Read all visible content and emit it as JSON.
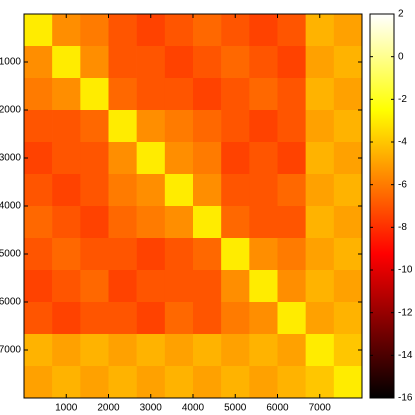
{
  "chart_data": {
    "type": "heatmap",
    "colormap": "hot",
    "xlim": [
      0,
      8000
    ],
    "ylim": [
      0,
      8000
    ],
    "xticks": [
      1000,
      2000,
      3000,
      4000,
      5000,
      6000,
      7000
    ],
    "yticks": [
      1000,
      2000,
      3000,
      4000,
      5000,
      6000,
      7000
    ],
    "clim": [
      -16,
      2
    ],
    "cticks": [
      -16,
      -14,
      -12,
      -10,
      -8,
      -6,
      -4,
      -2,
      0,
      2
    ],
    "z": [
      [
        -3,
        -5.5,
        -6,
        -7,
        -7.5,
        -7,
        -6.5,
        -7,
        -7.5,
        -7,
        -4.5,
        -5
      ],
      [
        -5.5,
        -3,
        -5.5,
        -7,
        -7,
        -7.5,
        -7,
        -6.5,
        -7,
        -7.5,
        -5,
        -4.5
      ],
      [
        -6,
        -5.5,
        -3,
        -6.5,
        -7,
        -7,
        -7.5,
        -7,
        -6.5,
        -7,
        -4.5,
        -5
      ],
      [
        -7,
        -7,
        -6.5,
        -3,
        -5.5,
        -6,
        -6.5,
        -7,
        -7.5,
        -7,
        -5,
        -4.5
      ],
      [
        -7.5,
        -7,
        -7,
        -5.5,
        -3,
        -5.5,
        -6,
        -7.5,
        -7,
        -7.5,
        -4.5,
        -5
      ],
      [
        -7,
        -7.5,
        -7,
        -6,
        -5.5,
        -3,
        -5.5,
        -7,
        -7,
        -6.5,
        -5,
        -4.5
      ],
      [
        -6.5,
        -7,
        -7.5,
        -6.5,
        -6,
        -5.5,
        -3,
        -6.5,
        -7,
        -7,
        -4.5,
        -5
      ],
      [
        -7,
        -6.5,
        -7,
        -7,
        -7.5,
        -7,
        -6.5,
        -3,
        -5.5,
        -6,
        -5,
        -4.5
      ],
      [
        -7.5,
        -7,
        -6.5,
        -7.5,
        -7,
        -7,
        -7,
        -5.5,
        -3,
        -5.5,
        -4.5,
        -5
      ],
      [
        -7,
        -7.5,
        -7,
        -7,
        -7.5,
        -6.5,
        -7,
        -6,
        -5.5,
        -3,
        -5,
        -4.5
      ],
      [
        -4.5,
        -5,
        -4.5,
        -5,
        -4.5,
        -5,
        -4.5,
        -5,
        -4.5,
        -5,
        -3,
        -4
      ],
      [
        -5,
        -4.5,
        -5,
        -4.5,
        -5,
        -4.5,
        -5,
        -4.5,
        -5,
        -4.5,
        -4,
        -3
      ]
    ]
  }
}
